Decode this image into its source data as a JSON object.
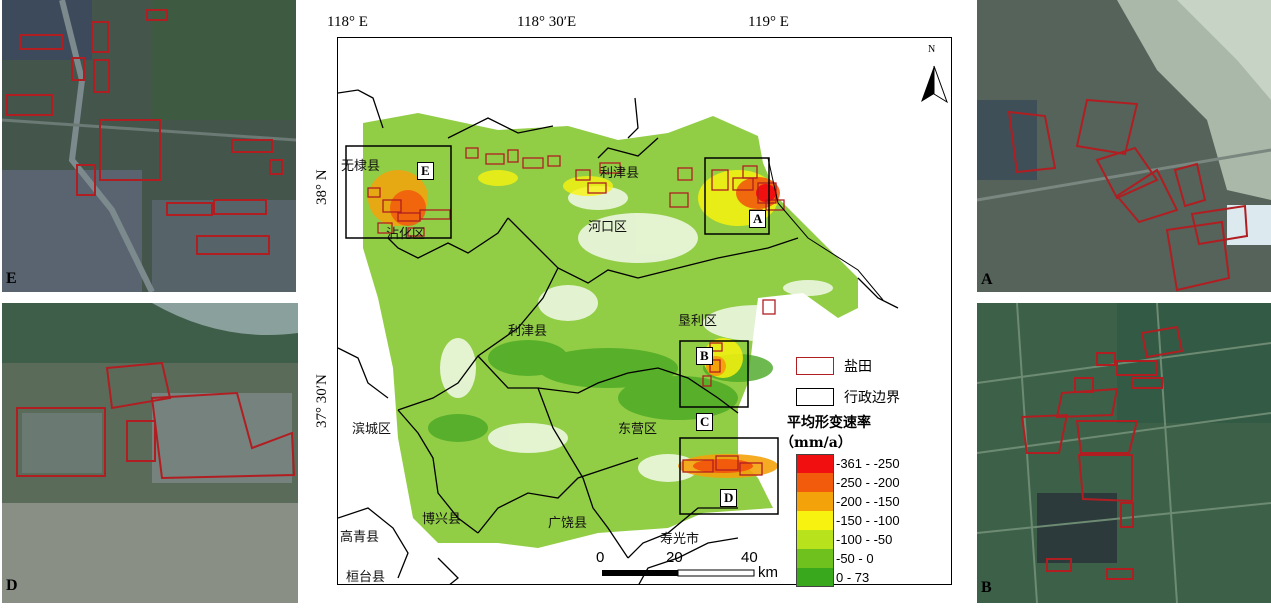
{
  "map": {
    "lon_labels": [
      "118° E",
      "118° 30′E",
      "119° E"
    ],
    "lat_labels": [
      "38° N",
      "37° 30′N"
    ],
    "north": "N",
    "places": [
      "无棣县",
      "利津县",
      "河口区",
      "沾化区",
      "利津县",
      "垦利区",
      "滨城区",
      "东营区",
      "博兴县",
      "广饶县",
      "寿光市",
      "高青县",
      "桓台县"
    ],
    "box_labels": [
      "A",
      "B",
      "C",
      "D",
      "E"
    ]
  },
  "legend": {
    "salt_field": "盐田",
    "admin_boundary": "行政边界",
    "rate_title": "平均形变速率",
    "rate_unit": "（mm/a）",
    "classes": [
      {
        "label": "-361 - -250",
        "color": "#f20f0f"
      },
      {
        "label": "-250 - -200",
        "color": "#f25a0c"
      },
      {
        "label": "-200 - -150",
        "color": "#f4a20a"
      },
      {
        "label": "-150 - -100",
        "color": "#f7f20f"
      },
      {
        "label": "-100 - -50",
        "color": "#b7e21c"
      },
      {
        "label": "-50 - 0",
        "color": "#6fc21d"
      },
      {
        "label": "0 - 73",
        "color": "#3aa81c"
      }
    ]
  },
  "scale": {
    "ticks": [
      "0",
      "20",
      "40"
    ],
    "unit": "km"
  },
  "panels": {
    "e": "E",
    "d": "D",
    "a": "A",
    "b": "B"
  },
  "colors": {
    "salt_outline": "#b01e22",
    "boundary": "#000000"
  }
}
